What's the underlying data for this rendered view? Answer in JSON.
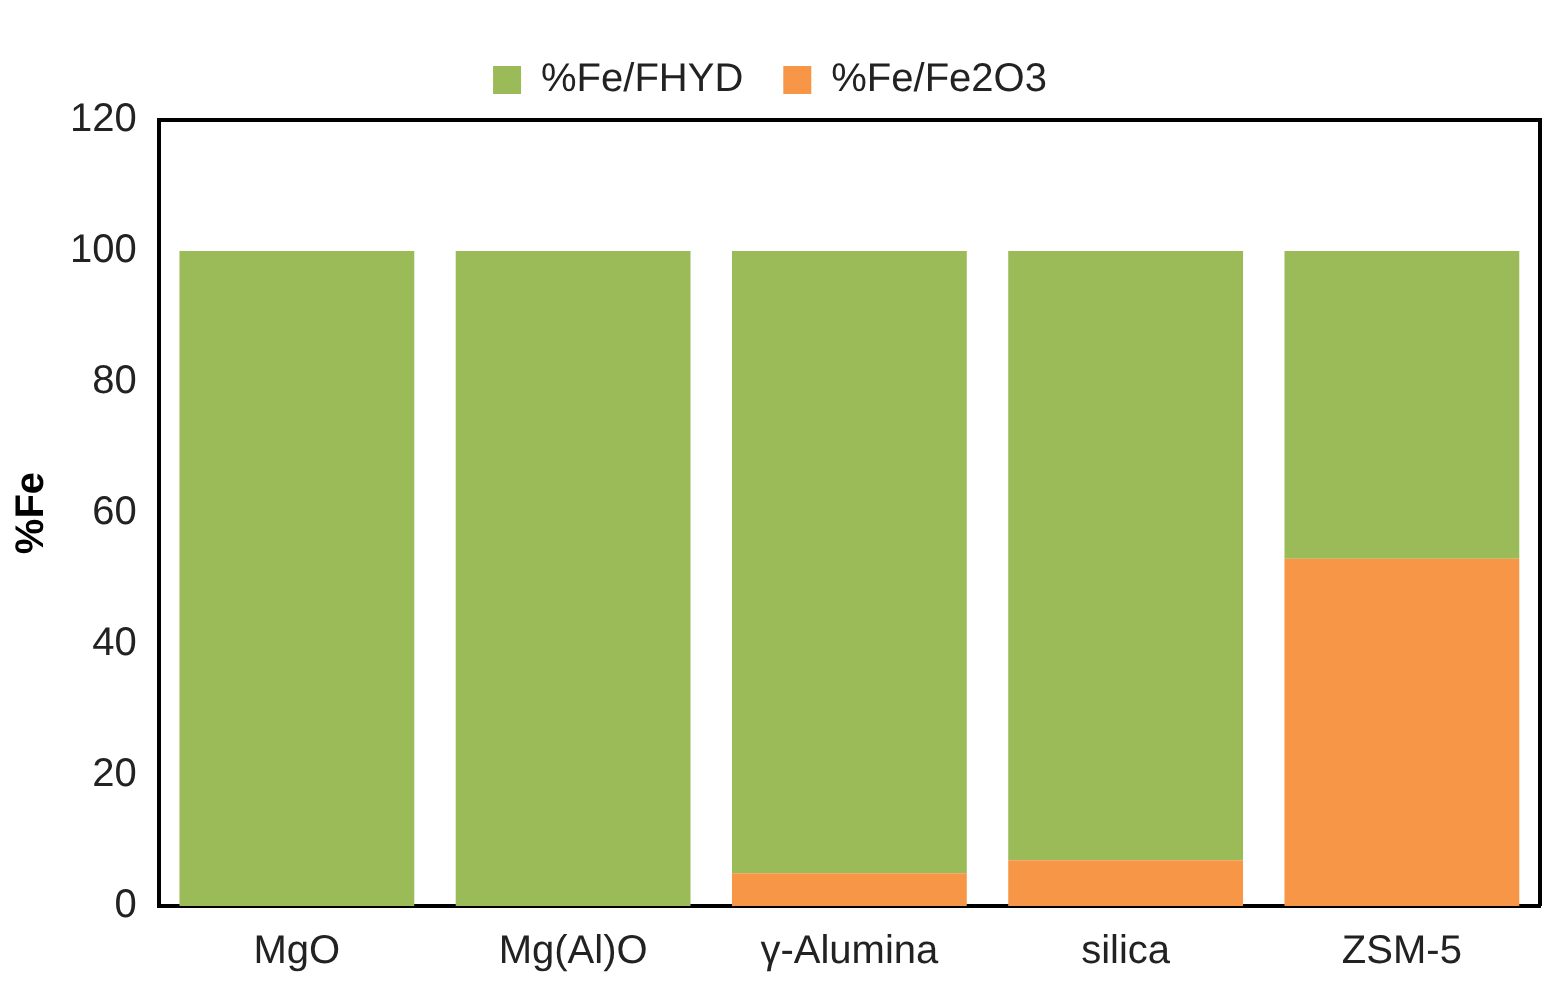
{
  "chart_data": {
    "type": "bar",
    "stacked": true,
    "ylabel": "%Fe",
    "categories": [
      "MgO",
      "Mg(Al)O",
      "γ-Alumina",
      "silica",
      "ZSM-5"
    ],
    "series": [
      {
        "name": "%Fe/Fe2O3",
        "color": "#f79646",
        "values": [
          0,
          0,
          5,
          7,
          53
        ]
      },
      {
        "name": "%Fe/FHYD",
        "color": "#9bbb59",
        "values": [
          100,
          100,
          95,
          93,
          47
        ]
      }
    ],
    "ylim": [
      0,
      120
    ],
    "yticks": [
      0,
      20,
      40,
      60,
      80,
      100,
      120
    ],
    "grid": false,
    "legend": "top"
  }
}
